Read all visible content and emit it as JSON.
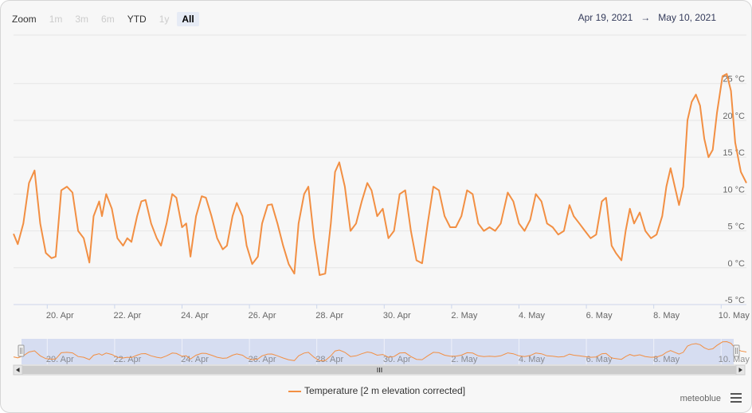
{
  "zoom": {
    "label": "Zoom",
    "buttons": [
      {
        "label": "1m",
        "state": "disabled"
      },
      {
        "label": "3m",
        "state": "disabled"
      },
      {
        "label": "6m",
        "state": "disabled"
      },
      {
        "label": "YTD",
        "state": "enabled"
      },
      {
        "label": "1y",
        "state": "disabled"
      },
      {
        "label": "All",
        "state": "selected"
      }
    ]
  },
  "range": {
    "from": "Apr 19, 2021",
    "arrow": "→",
    "to": "May 10, 2021"
  },
  "legend": {
    "label": "Temperature [2 m elevation corrected]"
  },
  "credit": "meteoblue",
  "colors": {
    "series": "#f28f43",
    "navigator_fill": "#d1d9ef",
    "grid": "#e6e6e6"
  },
  "chart_data": {
    "type": "line",
    "title": "",
    "xlabel": "",
    "ylabel": "",
    "x_range": [
      "2021-04-19T00:00",
      "2021-05-10T18:00"
    ],
    "ylim": [
      -5,
      28
    ],
    "y_ticks": [
      {
        "value": -5,
        "label": "-5 °C"
      },
      {
        "value": 0,
        "label": "0 °C"
      },
      {
        "value": 5,
        "label": "5 °C"
      },
      {
        "value": 10,
        "label": "10 °C"
      },
      {
        "value": 15,
        "label": "15 °C"
      },
      {
        "value": 20,
        "label": "20 °C"
      },
      {
        "value": 25,
        "label": "25 °C"
      }
    ],
    "x_ticks": [
      {
        "date": "2021-04-20",
        "label": "20. Apr"
      },
      {
        "date": "2021-04-22",
        "label": "22. Apr"
      },
      {
        "date": "2021-04-24",
        "label": "24. Apr"
      },
      {
        "date": "2021-04-26",
        "label": "26. Apr"
      },
      {
        "date": "2021-04-28",
        "label": "28. Apr"
      },
      {
        "date": "2021-04-30",
        "label": "30. Apr"
      },
      {
        "date": "2021-05-02",
        "label": "2. May"
      },
      {
        "date": "2021-05-04",
        "label": "4. May"
      },
      {
        "date": "2021-05-06",
        "label": "6. May"
      },
      {
        "date": "2021-05-08",
        "label": "8. May"
      },
      {
        "date": "2021-05-10",
        "label": "10. May"
      }
    ],
    "grid": true,
    "series": [
      {
        "name": "Temperature [2 m elevation corrected]",
        "unit": "°C",
        "points": [
          [
            "2021-04-19T00:00",
            4.6
          ],
          [
            "2021-04-19T03:00",
            3.2
          ],
          [
            "2021-04-19T07:00",
            6
          ],
          [
            "2021-04-19T11:00",
            11.5
          ],
          [
            "2021-04-19T15:00",
            13.2
          ],
          [
            "2021-04-19T19:00",
            6
          ],
          [
            "2021-04-19T23:00",
            2
          ],
          [
            "2021-04-20T03:00",
            1.3
          ],
          [
            "2021-04-20T06:00",
            1.5
          ],
          [
            "2021-04-20T10:00",
            10.5
          ],
          [
            "2021-04-20T14:00",
            11
          ],
          [
            "2021-04-20T18:00",
            10.2
          ],
          [
            "2021-04-20T22:00",
            5
          ],
          [
            "2021-04-21T02:00",
            4
          ],
          [
            "2021-04-21T06:00",
            0.7
          ],
          [
            "2021-04-21T09:00",
            7
          ],
          [
            "2021-04-21T13:00",
            9
          ],
          [
            "2021-04-21T15:00",
            7
          ],
          [
            "2021-04-21T18:00",
            10
          ],
          [
            "2021-04-21T22:00",
            8
          ],
          [
            "2021-04-22T02:00",
            4
          ],
          [
            "2021-04-22T06:00",
            3
          ],
          [
            "2021-04-22T09:00",
            4
          ],
          [
            "2021-04-22T12:00",
            3.5
          ],
          [
            "2021-04-22T16:00",
            7
          ],
          [
            "2021-04-22T19:00",
            9
          ],
          [
            "2021-04-22T22:00",
            9.2
          ],
          [
            "2021-04-23T02:00",
            6
          ],
          [
            "2021-04-23T06:00",
            4
          ],
          [
            "2021-04-23T09:00",
            3
          ],
          [
            "2021-04-23T13:00",
            6
          ],
          [
            "2021-04-23T17:00",
            10
          ],
          [
            "2021-04-23T20:00",
            9.5
          ],
          [
            "2021-04-24T00:00",
            5.5
          ],
          [
            "2021-04-24T03:00",
            6
          ],
          [
            "2021-04-24T06:00",
            1.5
          ],
          [
            "2021-04-24T10:00",
            7
          ],
          [
            "2021-04-24T14:00",
            9.7
          ],
          [
            "2021-04-24T17:00",
            9.5
          ],
          [
            "2021-04-24T21:00",
            7
          ],
          [
            "2021-04-25T01:00",
            4
          ],
          [
            "2021-04-25T05:00",
            2.5
          ],
          [
            "2021-04-25T08:00",
            3
          ],
          [
            "2021-04-25T12:00",
            7
          ],
          [
            "2021-04-25T15:00",
            8.8
          ],
          [
            "2021-04-25T19:00",
            7
          ],
          [
            "2021-04-25T22:00",
            3
          ],
          [
            "2021-04-26T02:00",
            0.5
          ],
          [
            "2021-04-26T06:00",
            1.5
          ],
          [
            "2021-04-26T09:00",
            6
          ],
          [
            "2021-04-26T13:00",
            8.5
          ],
          [
            "2021-04-26T16:00",
            8.6
          ],
          [
            "2021-04-26T20:00",
            6
          ],
          [
            "2021-04-27T00:00",
            3
          ],
          [
            "2021-04-27T04:00",
            0.5
          ],
          [
            "2021-04-27T08:00",
            -0.8
          ],
          [
            "2021-04-27T11:00",
            6
          ],
          [
            "2021-04-27T15:00",
            10
          ],
          [
            "2021-04-27T18:00",
            11
          ],
          [
            "2021-04-27T22:00",
            4
          ],
          [
            "2021-04-28T02:00",
            -1
          ],
          [
            "2021-04-28T06:00",
            -0.8
          ],
          [
            "2021-04-28T10:00",
            6
          ],
          [
            "2021-04-28T13:00",
            13
          ],
          [
            "2021-04-28T16:00",
            14.3
          ],
          [
            "2021-04-28T20:00",
            11
          ],
          [
            "2021-04-29T00:00",
            5
          ],
          [
            "2021-04-29T04:00",
            6
          ],
          [
            "2021-04-29T08:00",
            9
          ],
          [
            "2021-04-29T12:00",
            11.5
          ],
          [
            "2021-04-29T15:00",
            10.5
          ],
          [
            "2021-04-29T19:00",
            7
          ],
          [
            "2021-04-29T23:00",
            8
          ],
          [
            "2021-04-30T03:00",
            4
          ],
          [
            "2021-04-30T07:00",
            5
          ],
          [
            "2021-04-30T11:00",
            10
          ],
          [
            "2021-04-30T15:00",
            10.5
          ],
          [
            "2021-04-30T19:00",
            5
          ],
          [
            "2021-04-30T23:00",
            1
          ],
          [
            "2021-05-01T03:00",
            0.6
          ],
          [
            "2021-05-01T07:00",
            6
          ],
          [
            "2021-05-01T11:00",
            11
          ],
          [
            "2021-05-01T15:00",
            10.5
          ],
          [
            "2021-05-01T19:00",
            7
          ],
          [
            "2021-05-01T23:00",
            5.5
          ],
          [
            "2021-05-02T03:00",
            5.5
          ],
          [
            "2021-05-02T07:00",
            7
          ],
          [
            "2021-05-02T11:00",
            10.5
          ],
          [
            "2021-05-02T15:00",
            10
          ],
          [
            "2021-05-02T19:00",
            6
          ],
          [
            "2021-05-02T23:00",
            5
          ],
          [
            "2021-05-03T03:00",
            5.5
          ],
          [
            "2021-05-03T07:00",
            5
          ],
          [
            "2021-05-03T11:00",
            6
          ],
          [
            "2021-05-03T16:00",
            10.2
          ],
          [
            "2021-05-03T20:00",
            9
          ],
          [
            "2021-05-04T00:00",
            6
          ],
          [
            "2021-05-04T04:00",
            5
          ],
          [
            "2021-05-04T08:00",
            6.5
          ],
          [
            "2021-05-04T12:00",
            10
          ],
          [
            "2021-05-04T16:00",
            9
          ],
          [
            "2021-05-04T20:00",
            6
          ],
          [
            "2021-05-05T00:00",
            5.5
          ],
          [
            "2021-05-05T04:00",
            4.5
          ],
          [
            "2021-05-05T08:00",
            5
          ],
          [
            "2021-05-05T12:00",
            8.5
          ],
          [
            "2021-05-05T15:00",
            7
          ],
          [
            "2021-05-05T19:00",
            6
          ],
          [
            "2021-05-05T23:00",
            5
          ],
          [
            "2021-05-06T03:00",
            4
          ],
          [
            "2021-05-06T07:00",
            4.5
          ],
          [
            "2021-05-06T11:00",
            9
          ],
          [
            "2021-05-06T14:00",
            9.5
          ],
          [
            "2021-05-06T18:00",
            3
          ],
          [
            "2021-05-06T21:00",
            2
          ],
          [
            "2021-05-07T01:00",
            1
          ],
          [
            "2021-05-07T04:00",
            5
          ],
          [
            "2021-05-07T07:00",
            8
          ],
          [
            "2021-05-07T10:00",
            6
          ],
          [
            "2021-05-07T14:00",
            7.5
          ],
          [
            "2021-05-07T18:00",
            5
          ],
          [
            "2021-05-07T22:00",
            4
          ],
          [
            "2021-05-08T02:00",
            4.5
          ],
          [
            "2021-05-08T06:00",
            7
          ],
          [
            "2021-05-08T09:00",
            11
          ],
          [
            "2021-05-08T12:00",
            13.5
          ],
          [
            "2021-05-08T15:00",
            11
          ],
          [
            "2021-05-08T18:00",
            8.5
          ],
          [
            "2021-05-08T21:00",
            11
          ],
          [
            "2021-05-09T00:00",
            20
          ],
          [
            "2021-05-09T03:00",
            22.5
          ],
          [
            "2021-05-09T06:00",
            23.5
          ],
          [
            "2021-05-09T09:00",
            22
          ],
          [
            "2021-05-09T12:00",
            17.5
          ],
          [
            "2021-05-09T15:00",
            15
          ],
          [
            "2021-05-09T18:00",
            16
          ],
          [
            "2021-05-09T21:00",
            21
          ],
          [
            "2021-05-10T01:00",
            26
          ],
          [
            "2021-05-10T04:00",
            26.3
          ],
          [
            "2021-05-10T07:00",
            24
          ],
          [
            "2021-05-10T10:00",
            17
          ],
          [
            "2021-05-10T14:00",
            13
          ],
          [
            "2021-05-10T18:00",
            11.5
          ]
        ]
      }
    ]
  }
}
